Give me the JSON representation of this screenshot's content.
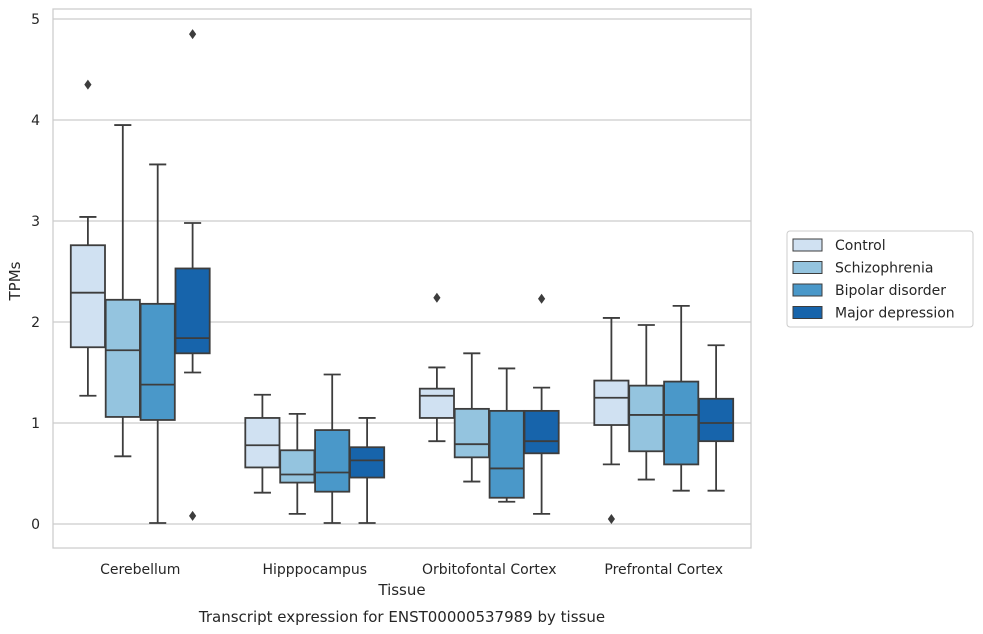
{
  "chart_data": {
    "type": "box",
    "xlabel": "Tissue",
    "ylabel": "TPMs",
    "caption": "Transcript expression for ENST00000537989 by tissue",
    "ylim": [
      -0.22,
      5.1
    ],
    "yticks": [
      0,
      1,
      2,
      3,
      4,
      5
    ],
    "grid": true,
    "legend_position": "right",
    "categories": [
      "Cerebellum",
      "Hipppocampus",
      "Orbitofontal Cortex",
      "Prefrontal Cortex"
    ],
    "series": [
      {
        "name": "Control",
        "color": "#d0e1f2",
        "boxes": [
          {
            "whislo": 1.27,
            "q1": 1.75,
            "med": 2.29,
            "q3": 2.76,
            "whishi": 3.04,
            "fliers": [
              4.35
            ]
          },
          {
            "whislo": 0.31,
            "q1": 0.56,
            "med": 0.78,
            "q3": 1.05,
            "whishi": 1.28,
            "fliers": []
          },
          {
            "whislo": 0.82,
            "q1": 1.05,
            "med": 1.27,
            "q3": 1.34,
            "whishi": 1.55,
            "fliers": [
              2.24
            ]
          },
          {
            "whislo": 0.59,
            "q1": 0.98,
            "med": 1.25,
            "q3": 1.42,
            "whishi": 2.04,
            "fliers": [
              0.05
            ]
          }
        ]
      },
      {
        "name": "Schizophrenia",
        "color": "#94c4df",
        "boxes": [
          {
            "whislo": 0.67,
            "q1": 1.06,
            "med": 1.72,
            "q3": 2.22,
            "whishi": 3.95,
            "fliers": []
          },
          {
            "whislo": 0.1,
            "q1": 0.41,
            "med": 0.49,
            "q3": 0.73,
            "whishi": 1.09,
            "fliers": []
          },
          {
            "whislo": 0.42,
            "q1": 0.66,
            "med": 0.79,
            "q3": 1.14,
            "whishi": 1.69,
            "fliers": []
          },
          {
            "whislo": 0.44,
            "q1": 0.72,
            "med": 1.08,
            "q3": 1.37,
            "whishi": 1.97,
            "fliers": []
          }
        ]
      },
      {
        "name": "Bipolar disorder",
        "color": "#4a98c9",
        "boxes": [
          {
            "whislo": 0.01,
            "q1": 1.03,
            "med": 1.38,
            "q3": 2.18,
            "whishi": 3.56,
            "fliers": []
          },
          {
            "whislo": 0.01,
            "q1": 0.32,
            "med": 0.51,
            "q3": 0.93,
            "whishi": 1.48,
            "fliers": []
          },
          {
            "whislo": 0.22,
            "q1": 0.26,
            "med": 0.55,
            "q3": 1.12,
            "whishi": 1.54,
            "fliers": []
          },
          {
            "whislo": 0.33,
            "q1": 0.59,
            "med": 1.08,
            "q3": 1.41,
            "whishi": 2.16,
            "fliers": []
          }
        ]
      },
      {
        "name": "Major depression",
        "color": "#1764ab",
        "boxes": [
          {
            "whislo": 1.5,
            "q1": 1.69,
            "med": 1.84,
            "q3": 2.53,
            "whishi": 2.98,
            "fliers": [
              4.85,
              0.08
            ]
          },
          {
            "whislo": 0.01,
            "q1": 0.46,
            "med": 0.63,
            "q3": 0.76,
            "whishi": 1.05,
            "fliers": []
          },
          {
            "whislo": 0.1,
            "q1": 0.7,
            "med": 0.82,
            "q3": 1.12,
            "whishi": 1.35,
            "fliers": [
              2.23
            ]
          },
          {
            "whislo": 0.33,
            "q1": 0.82,
            "med": 1.0,
            "q3": 1.24,
            "whishi": 1.77,
            "fliers": []
          }
        ]
      }
    ]
  }
}
